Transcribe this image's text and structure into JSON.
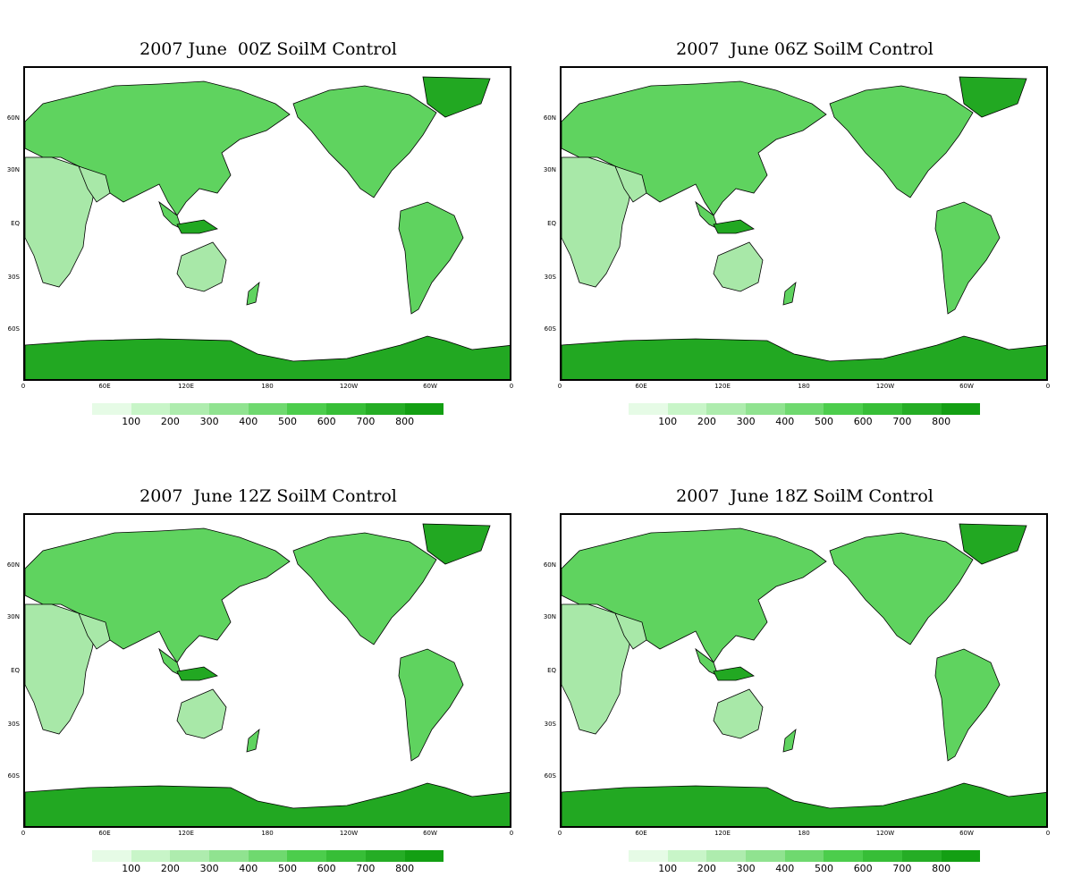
{
  "panels": [
    {
      "title": "2007 June  00Z SoilM Control"
    },
    {
      "title": "2007  June 06Z SoilM Control"
    },
    {
      "title": "2007  June 12Z SoilM Control"
    },
    {
      "title": "2007  June 18Z SoilM Control"
    }
  ],
  "lat_labels": [
    "60N",
    "30N",
    "EQ",
    "30S",
    "60S"
  ],
  "lon_labels": [
    "0",
    "60E",
    "120E",
    "180",
    "120W",
    "60W",
    "0"
  ],
  "colorbar": {
    "labels": [
      "100",
      "200",
      "300",
      "400",
      "500",
      "600",
      "700",
      "800"
    ],
    "colors": [
      "#e6fbe6",
      "#c8f5c8",
      "#aeecae",
      "#90e390",
      "#6fd96f",
      "#4ccd4c",
      "#37be37",
      "#25ad25",
      "#139f13"
    ]
  },
  "colors": {
    "ocean": "#ffffff",
    "land_light": "#a8e8a8",
    "land_mid": "#5fd35f",
    "land_dark": "#22a822",
    "coast": "#000000"
  }
}
